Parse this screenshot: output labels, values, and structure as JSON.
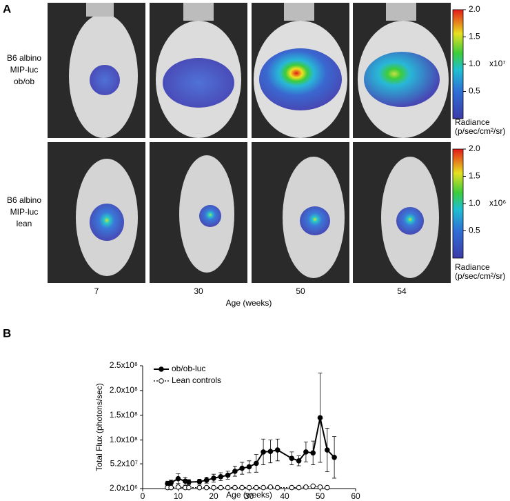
{
  "panel_a": {
    "label": "A",
    "columns": [
      "7",
      "30",
      "50",
      "54"
    ],
    "x_label": "Age (weeks)",
    "rows": [
      {
        "label": [
          "B6 albino",
          "MIP-luc",
          "ob/ob"
        ],
        "colorbar": {
          "clim": [
            0,
            2
          ],
          "ticks": [
            {
              "value": 2,
              "label": "2.0"
            },
            {
              "value": 1.5,
              "label": "1.5"
            },
            {
              "value": 1,
              "label": "1.0"
            },
            {
              "value": 0.5,
              "label": "0.5"
            }
          ],
          "multiplier": "x10⁷",
          "title": [
            "Radiance",
            "(p/sec/cm²/sr)"
          ]
        }
      },
      {
        "label": [
          "B6 albino",
          "MIP-luc",
          "lean"
        ],
        "colorbar": {
          "clim": [
            0,
            2
          ],
          "ticks": [
            {
              "value": 2,
              "label": "2.0"
            },
            {
              "value": 1.5,
              "label": "1.5"
            },
            {
              "value": 1,
              "label": "1.0"
            },
            {
              "value": 0.5,
              "label": "0.5"
            }
          ],
          "multiplier": "x10⁶",
          "title": [
            "Radiance",
            "(p/sec/cm²/sr)"
          ]
        }
      }
    ]
  },
  "chart_data": {
    "type": "line",
    "panel_label": "B",
    "xlabel": "Age (weeks)",
    "ylabel": "Total Flux (photons/sec)",
    "xlim": [
      0,
      60
    ],
    "xticks": [
      0,
      10,
      20,
      30,
      40,
      50,
      60
    ],
    "ylim": [
      2000000,
      250000000
    ],
    "yticks": [
      {
        "value": 2000000,
        "label": "2.0x10⁶"
      },
      {
        "value": 52000000,
        "label": "5.2x10⁷"
      },
      {
        "value": 100000000,
        "label": "1.0x10⁸"
      },
      {
        "value": 150000000,
        "label": "1.5x10⁸"
      },
      {
        "value": 200000000,
        "label": "2.0x10⁸"
      },
      {
        "value": 250000000,
        "label": "2.5x10⁸"
      }
    ],
    "legend": "upper left",
    "series": [
      {
        "name": "ob/ob-luc",
        "color": "#000000",
        "marker": "filled",
        "dashed": false,
        "x": [
          7,
          8,
          10,
          12,
          13,
          16,
          18,
          20,
          22,
          24,
          26,
          28,
          30,
          32,
          34,
          36,
          38,
          42,
          44,
          46,
          48,
          50,
          52,
          54
        ],
        "values": [
          12000000,
          14000000,
          22000000,
          17000000,
          15000000,
          16000000,
          19000000,
          23000000,
          26000000,
          29000000,
          37000000,
          43000000,
          46000000,
          53000000,
          76000000,
          77000000,
          80000000,
          63000000,
          58000000,
          76000000,
          74000000,
          145000000,
          80000000,
          65000000
        ],
        "errors": [
          5000000,
          5000000,
          10000000,
          8000000,
          5000000,
          5000000,
          6000000,
          8000000,
          8000000,
          8000000,
          10000000,
          12000000,
          12000000,
          18000000,
          26000000,
          23000000,
          22000000,
          13000000,
          10000000,
          20000000,
          24000000,
          90000000,
          44000000,
          42000000
        ]
      },
      {
        "name": "Lean controls",
        "color": "#000000",
        "marker": "open",
        "dashed": true,
        "x": [
          7,
          8,
          10,
          12,
          13,
          16,
          18,
          20,
          22,
          24,
          26,
          28,
          30,
          32,
          34,
          36,
          38,
          42,
          44,
          46,
          48,
          50,
          52
        ],
        "values": [
          4000000,
          4000000,
          5000000,
          4000000,
          4000000,
          4000000,
          4000000,
          4000000,
          4000000,
          4000000,
          4000000,
          4000000,
          4000000,
          4000000,
          4000000,
          5000000,
          4000000,
          4000000,
          4000000,
          5000000,
          7000000,
          5000000,
          4000000
        ],
        "errors": [
          1000000,
          1000000,
          1000000,
          1000000,
          1000000,
          1000000,
          1000000,
          1000000,
          1000000,
          1000000,
          1000000,
          1000000,
          1000000,
          1000000,
          1000000,
          1000000,
          1000000,
          1000000,
          1000000,
          1000000,
          1500000,
          1000000,
          1000000
        ]
      }
    ]
  }
}
